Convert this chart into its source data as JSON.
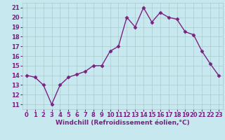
{
  "x": [
    0,
    1,
    2,
    3,
    4,
    5,
    6,
    7,
    8,
    9,
    10,
    11,
    12,
    13,
    14,
    15,
    16,
    17,
    18,
    19,
    20,
    21,
    22,
    23
  ],
  "y": [
    14,
    13.8,
    13,
    11,
    13,
    13.8,
    14.1,
    14.4,
    15,
    15,
    16.5,
    17,
    20,
    19,
    21,
    19.5,
    20.5,
    20,
    19.8,
    18.5,
    18.2,
    16.5,
    15.2,
    14
  ],
  "line_color": "#7B2182",
  "marker": "D",
  "marker_size": 2.5,
  "bg_color": "#c8e8f0",
  "grid_color": "#aacccc",
  "xlabel": "Windchill (Refroidissement éolien,°C)",
  "ylim": [
    10.5,
    21.5
  ],
  "xlim": [
    -0.5,
    23.5
  ],
  "yticks": [
    11,
    12,
    13,
    14,
    15,
    16,
    17,
    18,
    19,
    20,
    21
  ],
  "xticks": [
    0,
    1,
    2,
    3,
    4,
    5,
    6,
    7,
    8,
    9,
    10,
    11,
    12,
    13,
    14,
    15,
    16,
    17,
    18,
    19,
    20,
    21,
    22,
    23
  ],
  "label_fontsize": 6.5,
  "tick_fontsize": 6,
  "line_width": 1.0,
  "title_color": "#7B2182"
}
